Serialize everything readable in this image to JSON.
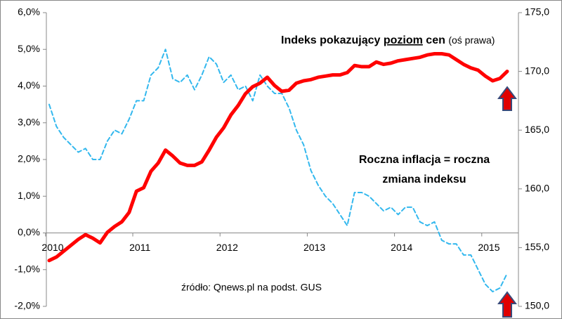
{
  "chart_data": {
    "type": "line",
    "annotations": {
      "price_index": [
        "Indeks pokazujący",
        "poziom",
        "cen",
        "(oś prawa)"
      ],
      "inflation": [
        "Roczna inflacja = roczna",
        "zmiana indeksu"
      ],
      "source": "źródło: Qnews.pl na podst. GUS"
    },
    "categories": [
      "2010",
      null,
      null,
      null,
      null,
      null,
      null,
      null,
      null,
      null,
      null,
      null,
      "2011",
      null,
      null,
      null,
      null,
      null,
      null,
      null,
      null,
      null,
      null,
      null,
      "2012",
      null,
      null,
      null,
      null,
      null,
      null,
      null,
      null,
      null,
      null,
      null,
      "2013",
      null,
      null,
      null,
      null,
      null,
      null,
      null,
      null,
      null,
      null,
      null,
      "2014",
      null,
      null,
      null,
      null,
      null,
      null,
      null,
      null,
      null,
      null,
      null,
      "2015",
      null,
      null,
      null
    ],
    "series": [
      {
        "color": "#33b8ee",
        "dashed": true,
        "values": [
          3.5,
          2.9,
          2.6,
          2.4,
          2.2,
          2.3,
          2.0,
          2.0,
          2.5,
          2.8,
          2.7,
          3.1,
          3.6,
          3.6,
          4.3,
          4.5,
          5.0,
          4.2,
          4.1,
          4.3,
          3.9,
          4.3,
          4.8,
          4.6,
          4.1,
          4.3,
          3.9,
          4.0,
          3.6,
          4.3,
          4.0,
          3.8,
          3.8,
          3.4,
          2.8,
          2.4,
          1.7,
          1.3,
          1.0,
          0.8,
          0.5,
          0.2,
          1.1,
          1.1,
          1.0,
          0.8,
          0.6,
          0.7,
          0.5,
          0.7,
          0.7,
          0.3,
          0.2,
          0.3,
          -0.2,
          -0.3,
          -0.3,
          -0.6,
          -0.6,
          -1.0,
          -1.4,
          -1.6,
          -1.5,
          -1.1
        ]
      },
      {
        "color": "#ff0000",
        "axis": "y2",
        "values": [
          153.9,
          154.2,
          154.7,
          155.2,
          155.7,
          156.1,
          155.8,
          155.4,
          156.3,
          156.8,
          157.2,
          158.0,
          159.8,
          160.1,
          161.5,
          162.2,
          163.3,
          162.8,
          162.2,
          162.0,
          162.0,
          162.3,
          163.3,
          164.4,
          165.2,
          166.3,
          167.1,
          168.1,
          168.7,
          169.0,
          169.5,
          168.8,
          168.3,
          168.4,
          169.0,
          169.2,
          169.3,
          169.5,
          169.6,
          169.7,
          169.7,
          169.9,
          170.5,
          170.4,
          170.4,
          170.8,
          170.6,
          170.7,
          170.9,
          171.0,
          171.1,
          171.2,
          171.4,
          171.5,
          171.5,
          171.4,
          171.0,
          170.6,
          170.3,
          170.1,
          169.6,
          169.2,
          169.4,
          170.0
        ]
      }
    ],
    "ylim": [
      -2,
      6
    ],
    "yticks": [
      {
        "value": -2,
        "label": "-2,0%"
      },
      {
        "value": -1,
        "label": "-1,0%"
      },
      {
        "value": 0,
        "label": "0,0%"
      },
      {
        "value": 1,
        "label": "1,0%"
      },
      {
        "value": 2,
        "label": "2,0%"
      },
      {
        "value": 3,
        "label": "3,0%"
      },
      {
        "value": 4,
        "label": "4,0%"
      },
      {
        "value": 5,
        "label": "5,0%"
      },
      {
        "value": 6,
        "label": "6,0%"
      }
    ],
    "y2lim": [
      150,
      175
    ],
    "y2ticks": [
      {
        "value": 150,
        "label": "150,0"
      },
      {
        "value": 155,
        "label": "155,0"
      },
      {
        "value": 160,
        "label": "160,0"
      },
      {
        "value": 165,
        "label": "165,0"
      },
      {
        "value": 170,
        "label": "170,0"
      },
      {
        "value": 175,
        "label": "175,0"
      }
    ],
    "grid": false
  }
}
